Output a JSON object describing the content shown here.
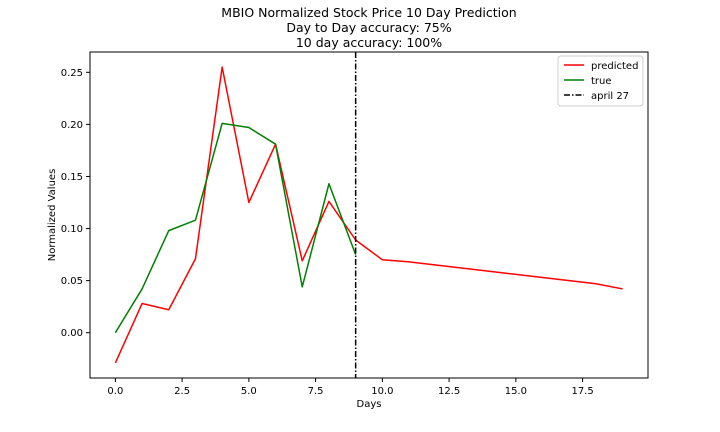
{
  "chart_data": {
    "type": "line",
    "title_lines": [
      "MBIO Normalized Stock Price 10 Day Prediction",
      "Day to Day accuracy: 75%",
      "10 day accuracy: 100%"
    ],
    "xlabel": "Days",
    "ylabel": "Normalized Values",
    "xlim": [
      -0.95,
      19.95
    ],
    "ylim": [
      -0.0435,
      0.2695
    ],
    "xticks": [
      {
        "value": 0.0,
        "label": "0.0"
      },
      {
        "value": 2.5,
        "label": "2.5"
      },
      {
        "value": 5.0,
        "label": "5.0"
      },
      {
        "value": 7.5,
        "label": "7.5"
      },
      {
        "value": 10.0,
        "label": "10.0"
      },
      {
        "value": 12.5,
        "label": "12.5"
      },
      {
        "value": 15.0,
        "label": "15.0"
      },
      {
        "value": 17.5,
        "label": "17.5"
      }
    ],
    "yticks": [
      {
        "value": 0.0,
        "label": "0.00"
      },
      {
        "value": 0.05,
        "label": "0.05"
      },
      {
        "value": 0.1,
        "label": "0.10"
      },
      {
        "value": 0.15,
        "label": "0.15"
      },
      {
        "value": 0.2,
        "label": "0.20"
      },
      {
        "value": 0.25,
        "label": "0.25"
      }
    ],
    "series": [
      {
        "name": "predicted",
        "color": "#ff0000",
        "x": [
          0,
          1,
          2,
          3,
          4,
          5,
          6,
          7,
          8,
          9,
          10,
          11,
          12,
          13,
          14,
          15,
          16,
          17,
          18,
          19
        ],
        "values": [
          -0.029,
          0.028,
          0.022,
          0.071,
          0.255,
          0.125,
          0.181,
          0.069,
          0.126,
          0.089,
          0.07,
          0.068,
          0.065,
          0.062,
          0.059,
          0.056,
          0.053,
          0.05,
          0.047,
          0.042
        ]
      },
      {
        "name": "true",
        "color": "#008000",
        "x": [
          0,
          1,
          2,
          3,
          4,
          5,
          6,
          7,
          8,
          9
        ],
        "values": [
          0.0,
          0.042,
          0.098,
          0.108,
          0.201,
          0.197,
          0.181,
          0.044,
          0.143,
          0.075
        ]
      }
    ],
    "vline": {
      "name": "april 27",
      "x": 9,
      "color": "#000000",
      "style": "dashdot"
    },
    "legend": {
      "position": "top-right",
      "entries": [
        {
          "label": "predicted",
          "color": "#ff0000",
          "style": "solid"
        },
        {
          "label": "true",
          "color": "#008000",
          "style": "solid"
        },
        {
          "label": "april 27",
          "color": "#000000",
          "style": "dashdot"
        }
      ]
    }
  }
}
